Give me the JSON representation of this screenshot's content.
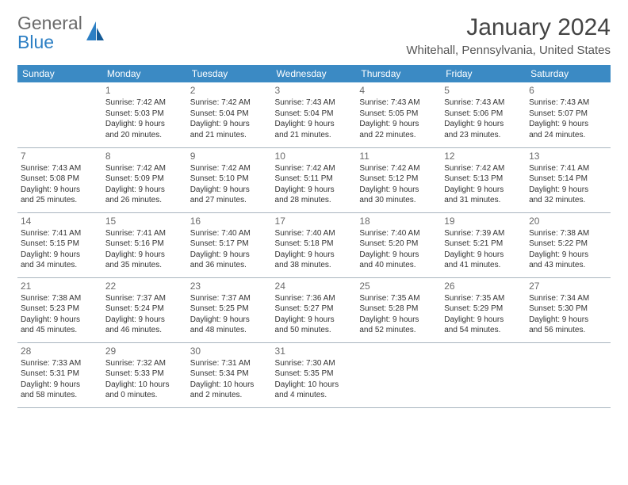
{
  "brand": {
    "part1": "General",
    "part2": "Blue"
  },
  "title": "January 2024",
  "location": "Whitehall, Pennsylvania, United States",
  "colors": {
    "header_bg": "#3b8ac4",
    "header_text": "#ffffff",
    "rule": "#a9b5bf",
    "logo_gray": "#6a6a6a",
    "logo_blue": "#2c7fc4",
    "text": "#333333"
  },
  "day_headers": [
    "Sunday",
    "Monday",
    "Tuesday",
    "Wednesday",
    "Thursday",
    "Friday",
    "Saturday"
  ],
  "weeks": [
    [
      {
        "n": "",
        "sr": "",
        "ss": "",
        "d1": "",
        "d2": ""
      },
      {
        "n": "1",
        "sr": "Sunrise: 7:42 AM",
        "ss": "Sunset: 5:03 PM",
        "d1": "Daylight: 9 hours",
        "d2": "and 20 minutes."
      },
      {
        "n": "2",
        "sr": "Sunrise: 7:42 AM",
        "ss": "Sunset: 5:04 PM",
        "d1": "Daylight: 9 hours",
        "d2": "and 21 minutes."
      },
      {
        "n": "3",
        "sr": "Sunrise: 7:43 AM",
        "ss": "Sunset: 5:04 PM",
        "d1": "Daylight: 9 hours",
        "d2": "and 21 minutes."
      },
      {
        "n": "4",
        "sr": "Sunrise: 7:43 AM",
        "ss": "Sunset: 5:05 PM",
        "d1": "Daylight: 9 hours",
        "d2": "and 22 minutes."
      },
      {
        "n": "5",
        "sr": "Sunrise: 7:43 AM",
        "ss": "Sunset: 5:06 PM",
        "d1": "Daylight: 9 hours",
        "d2": "and 23 minutes."
      },
      {
        "n": "6",
        "sr": "Sunrise: 7:43 AM",
        "ss": "Sunset: 5:07 PM",
        "d1": "Daylight: 9 hours",
        "d2": "and 24 minutes."
      }
    ],
    [
      {
        "n": "7",
        "sr": "Sunrise: 7:43 AM",
        "ss": "Sunset: 5:08 PM",
        "d1": "Daylight: 9 hours",
        "d2": "and 25 minutes."
      },
      {
        "n": "8",
        "sr": "Sunrise: 7:42 AM",
        "ss": "Sunset: 5:09 PM",
        "d1": "Daylight: 9 hours",
        "d2": "and 26 minutes."
      },
      {
        "n": "9",
        "sr": "Sunrise: 7:42 AM",
        "ss": "Sunset: 5:10 PM",
        "d1": "Daylight: 9 hours",
        "d2": "and 27 minutes."
      },
      {
        "n": "10",
        "sr": "Sunrise: 7:42 AM",
        "ss": "Sunset: 5:11 PM",
        "d1": "Daylight: 9 hours",
        "d2": "and 28 minutes."
      },
      {
        "n": "11",
        "sr": "Sunrise: 7:42 AM",
        "ss": "Sunset: 5:12 PM",
        "d1": "Daylight: 9 hours",
        "d2": "and 30 minutes."
      },
      {
        "n": "12",
        "sr": "Sunrise: 7:42 AM",
        "ss": "Sunset: 5:13 PM",
        "d1": "Daylight: 9 hours",
        "d2": "and 31 minutes."
      },
      {
        "n": "13",
        "sr": "Sunrise: 7:41 AM",
        "ss": "Sunset: 5:14 PM",
        "d1": "Daylight: 9 hours",
        "d2": "and 32 minutes."
      }
    ],
    [
      {
        "n": "14",
        "sr": "Sunrise: 7:41 AM",
        "ss": "Sunset: 5:15 PM",
        "d1": "Daylight: 9 hours",
        "d2": "and 34 minutes."
      },
      {
        "n": "15",
        "sr": "Sunrise: 7:41 AM",
        "ss": "Sunset: 5:16 PM",
        "d1": "Daylight: 9 hours",
        "d2": "and 35 minutes."
      },
      {
        "n": "16",
        "sr": "Sunrise: 7:40 AM",
        "ss": "Sunset: 5:17 PM",
        "d1": "Daylight: 9 hours",
        "d2": "and 36 minutes."
      },
      {
        "n": "17",
        "sr": "Sunrise: 7:40 AM",
        "ss": "Sunset: 5:18 PM",
        "d1": "Daylight: 9 hours",
        "d2": "and 38 minutes."
      },
      {
        "n": "18",
        "sr": "Sunrise: 7:40 AM",
        "ss": "Sunset: 5:20 PM",
        "d1": "Daylight: 9 hours",
        "d2": "and 40 minutes."
      },
      {
        "n": "19",
        "sr": "Sunrise: 7:39 AM",
        "ss": "Sunset: 5:21 PM",
        "d1": "Daylight: 9 hours",
        "d2": "and 41 minutes."
      },
      {
        "n": "20",
        "sr": "Sunrise: 7:38 AM",
        "ss": "Sunset: 5:22 PM",
        "d1": "Daylight: 9 hours",
        "d2": "and 43 minutes."
      }
    ],
    [
      {
        "n": "21",
        "sr": "Sunrise: 7:38 AM",
        "ss": "Sunset: 5:23 PM",
        "d1": "Daylight: 9 hours",
        "d2": "and 45 minutes."
      },
      {
        "n": "22",
        "sr": "Sunrise: 7:37 AM",
        "ss": "Sunset: 5:24 PM",
        "d1": "Daylight: 9 hours",
        "d2": "and 46 minutes."
      },
      {
        "n": "23",
        "sr": "Sunrise: 7:37 AM",
        "ss": "Sunset: 5:25 PM",
        "d1": "Daylight: 9 hours",
        "d2": "and 48 minutes."
      },
      {
        "n": "24",
        "sr": "Sunrise: 7:36 AM",
        "ss": "Sunset: 5:27 PM",
        "d1": "Daylight: 9 hours",
        "d2": "and 50 minutes."
      },
      {
        "n": "25",
        "sr": "Sunrise: 7:35 AM",
        "ss": "Sunset: 5:28 PM",
        "d1": "Daylight: 9 hours",
        "d2": "and 52 minutes."
      },
      {
        "n": "26",
        "sr": "Sunrise: 7:35 AM",
        "ss": "Sunset: 5:29 PM",
        "d1": "Daylight: 9 hours",
        "d2": "and 54 minutes."
      },
      {
        "n": "27",
        "sr": "Sunrise: 7:34 AM",
        "ss": "Sunset: 5:30 PM",
        "d1": "Daylight: 9 hours",
        "d2": "and 56 minutes."
      }
    ],
    [
      {
        "n": "28",
        "sr": "Sunrise: 7:33 AM",
        "ss": "Sunset: 5:31 PM",
        "d1": "Daylight: 9 hours",
        "d2": "and 58 minutes."
      },
      {
        "n": "29",
        "sr": "Sunrise: 7:32 AM",
        "ss": "Sunset: 5:33 PM",
        "d1": "Daylight: 10 hours",
        "d2": "and 0 minutes."
      },
      {
        "n": "30",
        "sr": "Sunrise: 7:31 AM",
        "ss": "Sunset: 5:34 PM",
        "d1": "Daylight: 10 hours",
        "d2": "and 2 minutes."
      },
      {
        "n": "31",
        "sr": "Sunrise: 7:30 AM",
        "ss": "Sunset: 5:35 PM",
        "d1": "Daylight: 10 hours",
        "d2": "and 4 minutes."
      },
      {
        "n": "",
        "sr": "",
        "ss": "",
        "d1": "",
        "d2": ""
      },
      {
        "n": "",
        "sr": "",
        "ss": "",
        "d1": "",
        "d2": ""
      },
      {
        "n": "",
        "sr": "",
        "ss": "",
        "d1": "",
        "d2": ""
      }
    ]
  ]
}
